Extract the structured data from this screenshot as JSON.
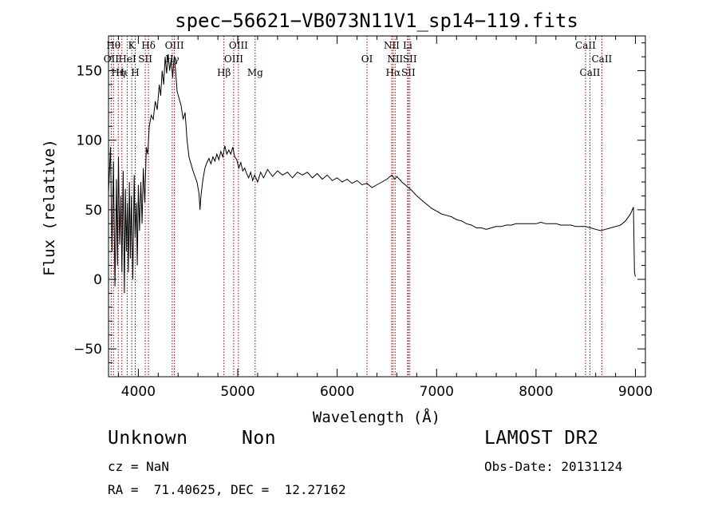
{
  "chart_data": {
    "type": "line",
    "title": "spec−56621−VB073N11V1_sp14−119.fits",
    "xlabel": "Wavelength (Å)",
    "ylabel": "Flux (relative)",
    "xlim": [
      3700,
      9100
    ],
    "ylim": [
      -70,
      175
    ],
    "x_ticks": [
      4000,
      5000,
      6000,
      7000,
      8000,
      9000
    ],
    "y_ticks": [
      -50,
      0,
      50,
      100,
      150
    ],
    "y_tick_labels": [
      "−50",
      "0",
      "50",
      "100",
      "150"
    ],
    "grid": false,
    "series": [
      {
        "points": [
          [
            3700,
            62
          ],
          [
            3720,
            95
          ],
          [
            3735,
            20
          ],
          [
            3750,
            85
          ],
          [
            3765,
            -5
          ],
          [
            3780,
            72
          ],
          [
            3790,
            10
          ],
          [
            3800,
            88
          ],
          [
            3812,
            25
          ],
          [
            3825,
            60
          ],
          [
            3835,
            5
          ],
          [
            3848,
            78
          ],
          [
            3860,
            -10
          ],
          [
            3870,
            65
          ],
          [
            3880,
            20
          ],
          [
            3890,
            55
          ],
          [
            3900,
            5
          ],
          [
            3910,
            70
          ],
          [
            3920,
            15
          ],
          [
            3930,
            60
          ],
          [
            3945,
            0
          ],
          [
            3958,
            75
          ],
          [
            3968,
            30
          ],
          [
            3980,
            55
          ],
          [
            3990,
            10
          ],
          [
            4000,
            68
          ],
          [
            4012,
            35
          ],
          [
            4025,
            70
          ],
          [
            4038,
            40
          ],
          [
            4050,
            80
          ],
          [
            4065,
            55
          ],
          [
            4080,
            95
          ],
          [
            4095,
            90
          ],
          [
            4110,
            110
          ],
          [
            4130,
            118
          ],
          [
            4150,
            115
          ],
          [
            4170,
            128
          ],
          [
            4190,
            122
          ],
          [
            4210,
            140
          ],
          [
            4225,
            132
          ],
          [
            4240,
            150
          ],
          [
            4255,
            140
          ],
          [
            4270,
            160
          ],
          [
            4285,
            148
          ],
          [
            4300,
            162
          ],
          [
            4315,
            150
          ],
          [
            4330,
            158
          ],
          [
            4345,
            145
          ],
          [
            4360,
            160
          ],
          [
            4375,
            150
          ],
          [
            4390,
            135
          ],
          [
            4410,
            130
          ],
          [
            4430,
            125
          ],
          [
            4450,
            115
          ],
          [
            4470,
            120
          ],
          [
            4490,
            100
          ],
          [
            4510,
            88
          ],
          [
            4530,
            83
          ],
          [
            4550,
            78
          ],
          [
            4570,
            74
          ],
          [
            4590,
            70
          ],
          [
            4610,
            62
          ],
          [
            4620,
            50
          ],
          [
            4630,
            60
          ],
          [
            4650,
            72
          ],
          [
            4670,
            80
          ],
          [
            4690,
            84
          ],
          [
            4710,
            87
          ],
          [
            4730,
            83
          ],
          [
            4750,
            88
          ],
          [
            4770,
            85
          ],
          [
            4790,
            90
          ],
          [
            4810,
            86
          ],
          [
            4830,
            92
          ],
          [
            4850,
            88
          ],
          [
            4870,
            96
          ],
          [
            4890,
            90
          ],
          [
            4910,
            93
          ],
          [
            4930,
            90
          ],
          [
            4950,
            95
          ],
          [
            4970,
            88
          ],
          [
            4990,
            86
          ],
          [
            5010,
            80
          ],
          [
            5030,
            84
          ],
          [
            5050,
            78
          ],
          [
            5070,
            80
          ],
          [
            5090,
            76
          ],
          [
            5110,
            73
          ],
          [
            5130,
            77
          ],
          [
            5150,
            71
          ],
          [
            5170,
            75
          ],
          [
            5200,
            70
          ],
          [
            5230,
            77
          ],
          [
            5260,
            73
          ],
          [
            5300,
            79
          ],
          [
            5350,
            74
          ],
          [
            5400,
            78
          ],
          [
            5450,
            75
          ],
          [
            5500,
            77
          ],
          [
            5550,
            73
          ],
          [
            5600,
            77
          ],
          [
            5650,
            75
          ],
          [
            5700,
            77
          ],
          [
            5750,
            73
          ],
          [
            5800,
            76
          ],
          [
            5850,
            72
          ],
          [
            5900,
            75
          ],
          [
            5950,
            71
          ],
          [
            6000,
            73
          ],
          [
            6050,
            70
          ],
          [
            6100,
            72
          ],
          [
            6150,
            69
          ],
          [
            6200,
            71
          ],
          [
            6250,
            68
          ],
          [
            6300,
            69
          ],
          [
            6350,
            66
          ],
          [
            6400,
            68
          ],
          [
            6450,
            70
          ],
          [
            6500,
            72
          ],
          [
            6550,
            75
          ],
          [
            6580,
            72
          ],
          [
            6600,
            74
          ],
          [
            6650,
            70
          ],
          [
            6700,
            67
          ],
          [
            6750,
            64
          ],
          [
            6800,
            60
          ],
          [
            6850,
            57
          ],
          [
            6900,
            54
          ],
          [
            6950,
            51
          ],
          [
            7000,
            49
          ],
          [
            7050,
            47
          ],
          [
            7100,
            46
          ],
          [
            7150,
            45
          ],
          [
            7200,
            43
          ],
          [
            7250,
            42
          ],
          [
            7300,
            40
          ],
          [
            7350,
            39
          ],
          [
            7400,
            37
          ],
          [
            7450,
            37
          ],
          [
            7500,
            36
          ],
          [
            7550,
            37
          ],
          [
            7600,
            38
          ],
          [
            7650,
            38
          ],
          [
            7700,
            39
          ],
          [
            7750,
            39
          ],
          [
            7800,
            40
          ],
          [
            7850,
            40
          ],
          [
            7900,
            40
          ],
          [
            7950,
            40
          ],
          [
            8000,
            40
          ],
          [
            8050,
            41
          ],
          [
            8100,
            40
          ],
          [
            8150,
            40
          ],
          [
            8200,
            40
          ],
          [
            8250,
            39
          ],
          [
            8300,
            39
          ],
          [
            8350,
            39
          ],
          [
            8400,
            38
          ],
          [
            8450,
            38
          ],
          [
            8500,
            38
          ],
          [
            8550,
            37
          ],
          [
            8600,
            36
          ],
          [
            8650,
            35
          ],
          [
            8700,
            36
          ],
          [
            8750,
            37
          ],
          [
            8800,
            38
          ],
          [
            8850,
            39
          ],
          [
            8900,
            42
          ],
          [
            8950,
            47
          ],
          [
            8980,
            52
          ],
          [
            8990,
            5
          ],
          [
            9000,
            2
          ]
        ]
      }
    ],
    "line_markers": [
      {
        "wavelength": 3750,
        "label": "Hθ",
        "row": 1
      },
      {
        "wavelength": 3798,
        "label": "Hη",
        "row": 3
      },
      {
        "wavelength": 3727,
        "label": "OII",
        "row": 2
      },
      {
        "wavelength": 3835,
        "label": "Hι",
        "row": 3
      },
      {
        "wavelength": 3889,
        "label": "HeI",
        "row": 2
      },
      {
        "wavelength": 3934,
        "label": "K",
        "row": 1
      },
      {
        "wavelength": 3969,
        "label": "H",
        "row": 3
      },
      {
        "wavelength": 4070,
        "label": "SII",
        "row": 2
      },
      {
        "wavelength": 4102,
        "label": "Hδ",
        "row": 1
      },
      {
        "wavelength": 4341,
        "label": "Hγ",
        "row": 2
      },
      {
        "wavelength": 4363,
        "label": "OIII",
        "row": 1
      },
      {
        "wavelength": 4861,
        "label": "Hβ",
        "row": 3
      },
      {
        "wavelength": 4959,
        "label": "OIII",
        "row": 2
      },
      {
        "wavelength": 5007,
        "label": "OIII",
        "row": 1
      },
      {
        "wavelength": 5175,
        "label": "Mg",
        "row": 3
      },
      {
        "wavelength": 6300,
        "label": "OI",
        "row": 2
      },
      {
        "wavelength": 6548,
        "label": "NII",
        "row": 1
      },
      {
        "wavelength": 6563,
        "label": "Hα",
        "row": 3
      },
      {
        "wavelength": 6583,
        "label": "NII",
        "row": 2
      },
      {
        "wavelength": 6708,
        "label": "Li",
        "row": 1
      },
      {
        "wavelength": 6716,
        "label": "SII",
        "row": 3
      },
      {
        "wavelength": 6731,
        "label": "SII",
        "row": 2
      },
      {
        "wavelength": 8498,
        "label": "CaII",
        "row": 1
      },
      {
        "wavelength": 8542,
        "label": "CaII",
        "row": 3
      },
      {
        "wavelength": 8662,
        "label": "CaII",
        "row": 2
      }
    ],
    "colors": {
      "spectrum": "#000000",
      "marker_line": "#8b0000"
    }
  },
  "info": {
    "object_class": "Unknown",
    "subclass": "Non",
    "survey": "LAMOST DR2",
    "redshift": "cz = NaN",
    "obs_date": "Obs-Date: 20131124",
    "coords": "RA =  71.40625, DEC =  12.27162"
  }
}
